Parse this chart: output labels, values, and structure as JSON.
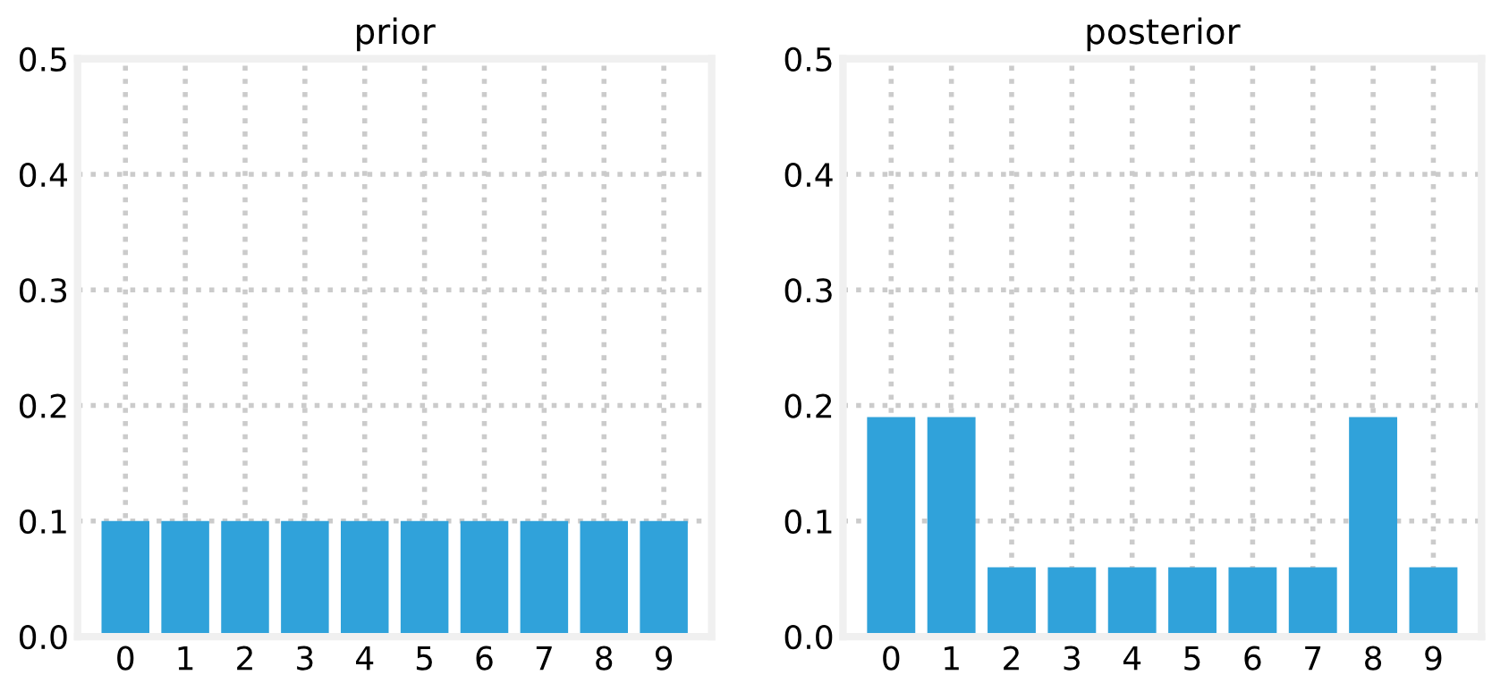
{
  "chart_data": [
    {
      "type": "bar",
      "title": "prior",
      "categories": [
        "0",
        "1",
        "2",
        "3",
        "4",
        "5",
        "6",
        "7",
        "8",
        "9"
      ],
      "values": [
        0.1,
        0.1,
        0.1,
        0.1,
        0.1,
        0.1,
        0.1,
        0.1,
        0.1,
        0.1
      ],
      "color": "#30a2da",
      "ylim": [
        0,
        0.5
      ],
      "yticks": [
        {
          "value": 0,
          "label": "0.0"
        },
        0.1,
        0.2,
        0.3,
        0.4,
        0.5
      ],
      "grid": true,
      "line_style": "dotted"
    },
    {
      "type": "bar",
      "title": "posterior",
      "categories": [
        "0",
        "1",
        "2",
        "3",
        "4",
        "5",
        "6",
        "7",
        "8",
        "9"
      ],
      "values": [
        0.19,
        0.19,
        0.06,
        0.06,
        0.06,
        0.06,
        0.06,
        0.06,
        0.19,
        0.06
      ],
      "color": "#30a2da",
      "ylim": [
        0,
        0.5
      ],
      "yticks": [
        {
          "value": 0,
          "label": "0.0"
        },
        0.1,
        0.2,
        0.3,
        0.4,
        0.5
      ],
      "grid": true,
      "line_style": "dotted"
    }
  ]
}
